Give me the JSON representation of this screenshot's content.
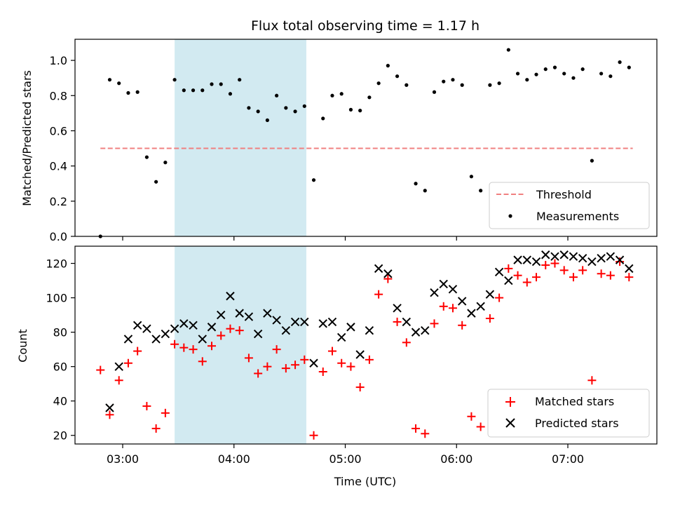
{
  "chart_data": [
    {
      "type": "scatter",
      "title": "Flux total observing time = 1.17 h",
      "xlabel": "",
      "ylabel": "Matched/Predicted stars",
      "ylim": [
        0,
        1.12
      ],
      "yticks": [
        "0.0",
        "0.2",
        "0.4",
        "0.6",
        "0.8",
        "1.0"
      ],
      "xticks": [
        "03:00",
        "04:00",
        "05:00",
        "06:00",
        "07:00"
      ],
      "shaded_region": {
        "start": "03:28",
        "end": "04:39",
        "color": "#add8e6"
      },
      "threshold": {
        "name": "Threshold",
        "value": 0.5,
        "start": "02:48",
        "end": "07:35",
        "color": "#f08080"
      },
      "legend_position": "lower-right",
      "series": [
        {
          "name": "Measurements",
          "color": "#000000",
          "points": [
            [
              "02:48",
              0.0
            ],
            [
              "02:53",
              0.89
            ],
            [
              "02:58",
              0.87
            ],
            [
              "03:03",
              0.815
            ],
            [
              "03:08",
              0.82
            ],
            [
              "03:13",
              0.45
            ],
            [
              "03:18",
              0.31
            ],
            [
              "03:23",
              0.42
            ],
            [
              "03:28",
              0.89
            ],
            [
              "03:33",
              0.83
            ],
            [
              "03:38",
              0.83
            ],
            [
              "03:43",
              0.83
            ],
            [
              "03:48",
              0.865
            ],
            [
              "03:53",
              0.865
            ],
            [
              "03:58",
              0.81
            ],
            [
              "04:03",
              0.89
            ],
            [
              "04:08",
              0.73
            ],
            [
              "04:13",
              0.71
            ],
            [
              "04:18",
              0.66
            ],
            [
              "04:23",
              0.8
            ],
            [
              "04:28",
              0.73
            ],
            [
              "04:33",
              0.71
            ],
            [
              "04:38",
              0.74
            ],
            [
              "04:43",
              0.32
            ],
            [
              "04:48",
              0.67
            ],
            [
              "04:53",
              0.8
            ],
            [
              "04:58",
              0.81
            ],
            [
              "05:03",
              0.72
            ],
            [
              "05:08",
              0.715
            ],
            [
              "05:13",
              0.79
            ],
            [
              "05:18",
              0.87
            ],
            [
              "05:23",
              0.97
            ],
            [
              "05:28",
              0.91
            ],
            [
              "05:33",
              0.86
            ],
            [
              "05:38",
              0.3
            ],
            [
              "05:43",
              0.26
            ],
            [
              "05:48",
              0.82
            ],
            [
              "05:53",
              0.88
            ],
            [
              "05:58",
              0.89
            ],
            [
              "06:03",
              0.86
            ],
            [
              "06:08",
              0.34
            ],
            [
              "06:13",
              0.26
            ],
            [
              "06:18",
              0.86
            ],
            [
              "06:23",
              0.87
            ],
            [
              "06:28",
              1.06
            ],
            [
              "06:33",
              0.925
            ],
            [
              "06:38",
              0.89
            ],
            [
              "06:43",
              0.92
            ],
            [
              "06:48",
              0.95
            ],
            [
              "06:53",
              0.96
            ],
            [
              "06:58",
              0.925
            ],
            [
              "07:03",
              0.9
            ],
            [
              "07:08",
              0.95
            ],
            [
              "07:13",
              0.43
            ],
            [
              "07:18",
              0.925
            ],
            [
              "07:23",
              0.91
            ],
            [
              "07:28",
              0.99
            ],
            [
              "07:33",
              0.96
            ]
          ]
        }
      ]
    },
    {
      "type": "scatter",
      "title": "",
      "xlabel": "Time (UTC)",
      "ylabel": "Count",
      "ylim": [
        15,
        130
      ],
      "yticks": [
        "20",
        "40",
        "60",
        "80",
        "100",
        "120"
      ],
      "xticks": [
        "03:00",
        "04:00",
        "05:00",
        "06:00",
        "07:00"
      ],
      "shaded_region": {
        "start": "03:28",
        "end": "04:39",
        "color": "#add8e6"
      },
      "legend_position": "lower-right",
      "series": [
        {
          "name": "Matched stars",
          "color": "#ff0000",
          "marker": "+",
          "points": [
            [
              "02:48",
              58
            ],
            [
              "02:53",
              32
            ],
            [
              "02:58",
              52
            ],
            [
              "03:03",
              62
            ],
            [
              "03:08",
              69
            ],
            [
              "03:13",
              37
            ],
            [
              "03:18",
              24
            ],
            [
              "03:23",
              33
            ],
            [
              "03:28",
              73
            ],
            [
              "03:33",
              71
            ],
            [
              "03:38",
              70
            ],
            [
              "03:43",
              63
            ],
            [
              "03:48",
              72
            ],
            [
              "03:53",
              78
            ],
            [
              "03:58",
              82
            ],
            [
              "04:03",
              81
            ],
            [
              "04:08",
              65
            ],
            [
              "04:13",
              56
            ],
            [
              "04:18",
              60
            ],
            [
              "04:23",
              70
            ],
            [
              "04:28",
              59
            ],
            [
              "04:33",
              61
            ],
            [
              "04:38",
              64
            ],
            [
              "04:43",
              20
            ],
            [
              "04:48",
              57
            ],
            [
              "04:53",
              69
            ],
            [
              "04:58",
              62
            ],
            [
              "05:03",
              60
            ],
            [
              "05:08",
              48
            ],
            [
              "05:13",
              64
            ],
            [
              "05:18",
              102
            ],
            [
              "05:23",
              111
            ],
            [
              "05:28",
              86
            ],
            [
              "05:33",
              74
            ],
            [
              "05:38",
              24
            ],
            [
              "05:43",
              21
            ],
            [
              "05:48",
              85
            ],
            [
              "05:53",
              95
            ],
            [
              "05:58",
              94
            ],
            [
              "06:03",
              84
            ],
            [
              "06:08",
              31
            ],
            [
              "06:13",
              25
            ],
            [
              "06:18",
              88
            ],
            [
              "06:23",
              100
            ],
            [
              "06:28",
              117
            ],
            [
              "06:33",
              113
            ],
            [
              "06:38",
              109
            ],
            [
              "06:43",
              112
            ],
            [
              "06:48",
              119
            ],
            [
              "06:53",
              120
            ],
            [
              "06:58",
              116
            ],
            [
              "07:03",
              112
            ],
            [
              "07:08",
              116
            ],
            [
              "07:13",
              52
            ],
            [
              "07:18",
              114
            ],
            [
              "07:23",
              113
            ],
            [
              "07:28",
              121
            ],
            [
              "07:33",
              112
            ]
          ]
        },
        {
          "name": "Predicted stars",
          "color": "#000000",
          "marker": "x",
          "points": [
            [
              "02:53",
              36
            ],
            [
              "02:58",
              60
            ],
            [
              "03:03",
              76
            ],
            [
              "03:08",
              84
            ],
            [
              "03:13",
              82
            ],
            [
              "03:18",
              76
            ],
            [
              "03:23",
              79
            ],
            [
              "03:28",
              82
            ],
            [
              "03:33",
              85
            ],
            [
              "03:38",
              84
            ],
            [
              "03:43",
              76
            ],
            [
              "03:48",
              83
            ],
            [
              "03:53",
              90
            ],
            [
              "03:58",
              101
            ],
            [
              "04:03",
              91
            ],
            [
              "04:08",
              89
            ],
            [
              "04:13",
              79
            ],
            [
              "04:18",
              91
            ],
            [
              "04:23",
              87
            ],
            [
              "04:28",
              81
            ],
            [
              "04:33",
              86
            ],
            [
              "04:38",
              86
            ],
            [
              "04:43",
              62
            ],
            [
              "04:48",
              85
            ],
            [
              "04:53",
              86
            ],
            [
              "04:58",
              77
            ],
            [
              "05:03",
              83
            ],
            [
              "05:08",
              67
            ],
            [
              "05:13",
              81
            ],
            [
              "05:18",
              117
            ],
            [
              "05:23",
              114
            ],
            [
              "05:28",
              94
            ],
            [
              "05:33",
              86
            ],
            [
              "05:38",
              80
            ],
            [
              "05:43",
              81
            ],
            [
              "05:48",
              103
            ],
            [
              "05:53",
              108
            ],
            [
              "05:58",
              105
            ],
            [
              "06:03",
              98
            ],
            [
              "06:08",
              91
            ],
            [
              "06:13",
              95
            ],
            [
              "06:18",
              102
            ],
            [
              "06:23",
              115
            ],
            [
              "06:28",
              110
            ],
            [
              "06:33",
              122
            ],
            [
              "06:38",
              122
            ],
            [
              "06:43",
              121
            ],
            [
              "06:48",
              125
            ],
            [
              "06:53",
              124
            ],
            [
              "06:58",
              125
            ],
            [
              "07:03",
              124
            ],
            [
              "07:08",
              123
            ],
            [
              "07:13",
              121
            ],
            [
              "07:18",
              123
            ],
            [
              "07:23",
              124
            ],
            [
              "07:28",
              122
            ],
            [
              "07:33",
              117
            ]
          ]
        }
      ]
    }
  ]
}
